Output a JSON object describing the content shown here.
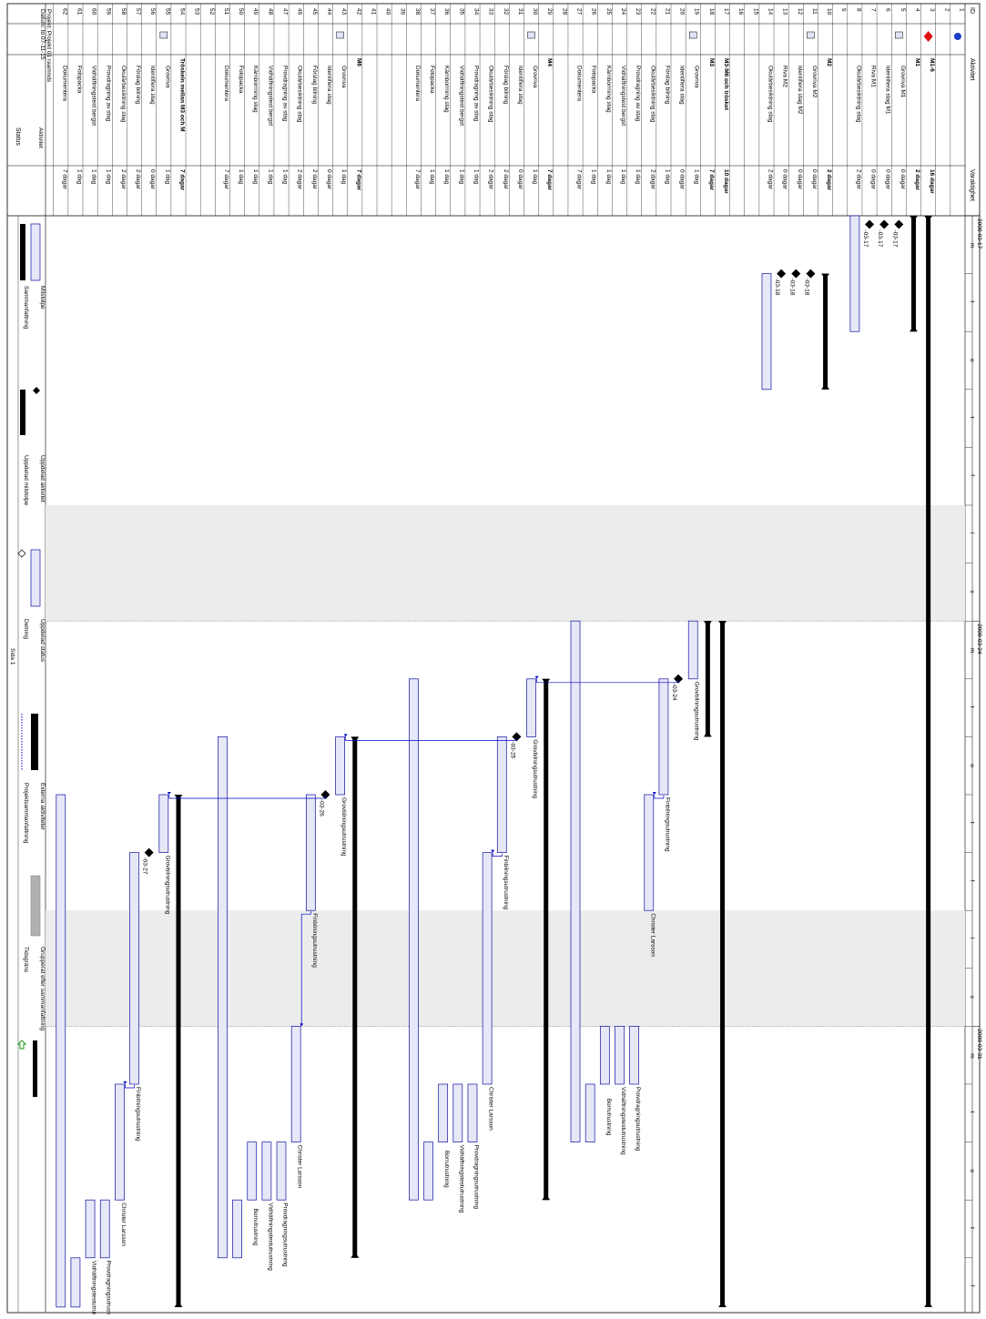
{
  "header": {
    "id_label": "ID",
    "task_label": "Aktivitet",
    "duration_label": "Varaktighet",
    "status_label": "Status",
    "project_info_line1": "Projekt: Projekt 01 raamnds",
    "project_info_line2": "Datum: to 07-11-15"
  },
  "timescale": {
    "weeks": [
      {
        "label": "2008-03-17",
        "days": [
          "m",
          "t",
          "o",
          "t",
          "f",
          "l",
          "s"
        ]
      },
      {
        "label": "2008-03-24",
        "days": [
          "m",
          "t",
          "o",
          "t",
          "f",
          "l",
          "s"
        ]
      },
      {
        "label": "2008-03-31",
        "days": [
          "m",
          "t",
          "o",
          "t",
          "f"
        ]
      }
    ]
  },
  "rows": [
    {
      "id": "1",
      "name": "",
      "dur": ""
    },
    {
      "id": "2",
      "name": "",
      "dur": ""
    },
    {
      "id": "3",
      "name": "M1-6",
      "dur": "16 dagar",
      "bold": true
    },
    {
      "id": "4",
      "name": "M1",
      "dur": "2 dagar",
      "bold": true
    },
    {
      "id": "5",
      "name": "Grovriva M1",
      "dur": "0 dagar"
    },
    {
      "id": "6",
      "name": "Identifiera stag M1",
      "dur": "0 dagar"
    },
    {
      "id": "7",
      "name": "Riva M1",
      "dur": "0 dagar"
    },
    {
      "id": "8",
      "name": "Okulärbesiktning stag",
      "dur": "2 dagar"
    },
    {
      "id": "9",
      "name": "",
      "dur": ""
    },
    {
      "id": "10",
      "name": "M2",
      "dur": "2 dagar",
      "bold": true
    },
    {
      "id": "11",
      "name": "Grovriva M2",
      "dur": "0 dagar"
    },
    {
      "id": "12",
      "name": "Identifiera stag M2",
      "dur": "0 dagar"
    },
    {
      "id": "13",
      "name": "Riva M2",
      "dur": "0 dagar"
    },
    {
      "id": "14",
      "name": "Okulärbesiktning stag",
      "dur": "2 dagar"
    },
    {
      "id": "15",
      "name": "",
      "dur": ""
    },
    {
      "id": "16",
      "name": "",
      "dur": ""
    },
    {
      "id": "17",
      "name": "M3-M6 och trösket",
      "dur": "10 dagar",
      "bold": true
    },
    {
      "id": "18",
      "name": "M3",
      "dur": "7 dagar",
      "bold": true
    },
    {
      "id": "19",
      "name": "Grovriva",
      "dur": "1 dag"
    },
    {
      "id": "20",
      "name": "Identifiera stag",
      "dur": "0 dagar"
    },
    {
      "id": "21",
      "name": "Förslag bilning",
      "dur": "1 dag"
    },
    {
      "id": "22",
      "name": "Okulärbesiktning stag",
      "dur": "2 dagar"
    },
    {
      "id": "23",
      "name": "Provdragning av stag",
      "dur": "1 dag"
    },
    {
      "id": "24",
      "name": "Vidhäftningstest bergst",
      "dur": "1 dag"
    },
    {
      "id": "25",
      "name": "Kärnborrning stag",
      "dur": "1 dag"
    },
    {
      "id": "26",
      "name": "Fotopacka",
      "dur": "1 dag"
    },
    {
      "id": "27",
      "name": "Dokumentera",
      "dur": "7 dagar"
    },
    {
      "id": "28",
      "name": "",
      "dur": ""
    },
    {
      "id": "29",
      "name": "M4",
      "dur": "7 dagar",
      "bold": true
    },
    {
      "id": "30",
      "name": "Grovriva",
      "dur": "1 dag"
    },
    {
      "id": "31",
      "name": "Identifiera stag",
      "dur": "0 dagar"
    },
    {
      "id": "32",
      "name": "Förslag bilning",
      "dur": "2 dagar"
    },
    {
      "id": "33",
      "name": "Okulärbesiktning stag",
      "dur": "2 dagar"
    },
    {
      "id": "34",
      "name": "Provdragning av stag",
      "dur": "1 dag"
    },
    {
      "id": "35",
      "name": "Vidhäftningstest bergst",
      "dur": "1 dag"
    },
    {
      "id": "36",
      "name": "Kärnborrning stag",
      "dur": "1 dag"
    },
    {
      "id": "37",
      "name": "Fotopacka",
      "dur": "1 dag"
    },
    {
      "id": "38",
      "name": "Dokumentera",
      "dur": "7 dagar"
    },
    {
      "id": "39",
      "name": "",
      "dur": ""
    },
    {
      "id": "40",
      "name": "",
      "dur": ""
    },
    {
      "id": "41",
      "name": "",
      "dur": ""
    },
    {
      "id": "42",
      "name": "M6",
      "dur": "7 dagar",
      "bold": true
    },
    {
      "id": "43",
      "name": "Grovriva",
      "dur": "1 dag"
    },
    {
      "id": "44",
      "name": "Identifiera stag",
      "dur": "0 dagar"
    },
    {
      "id": "45",
      "name": "Förslag bilning",
      "dur": "2 dagar"
    },
    {
      "id": "46",
      "name": "Okulärbesiktning stag",
      "dur": "2 dagar"
    },
    {
      "id": "47",
      "name": "Provdragning av stag",
      "dur": "1 dag"
    },
    {
      "id": "48",
      "name": "Vidhäftningstest bergst",
      "dur": "1 dag"
    },
    {
      "id": "49",
      "name": "Kärnborrning stag",
      "dur": "1 dag"
    },
    {
      "id": "50",
      "name": "Fotopacka",
      "dur": "1 dag"
    },
    {
      "id": "51",
      "name": "Dokumentera",
      "dur": "7 dagar"
    },
    {
      "id": "52",
      "name": "",
      "dur": ""
    },
    {
      "id": "53",
      "name": "",
      "dur": ""
    },
    {
      "id": "54",
      "name": "Tröskeln mellan M3 och M",
      "dur": "7 dagar",
      "bold": true
    },
    {
      "id": "55",
      "name": "Grovriva",
      "dur": "1 dag"
    },
    {
      "id": "56",
      "name": "Identifiera stag",
      "dur": "0 dagar"
    },
    {
      "id": "57",
      "name": "Förslag bilning",
      "dur": "2 dagar"
    },
    {
      "id": "58",
      "name": "Okulärbesiktning stag",
      "dur": "2 dagar"
    },
    {
      "id": "59",
      "name": "Provdragning av stag",
      "dur": "1 dag"
    },
    {
      "id": "60",
      "name": "Vidhäftningstest bergst",
      "dur": "1 dag"
    },
    {
      "id": "61",
      "name": "Fotopacka",
      "dur": "1 dag"
    },
    {
      "id": "62",
      "name": "Dokumentera",
      "dur": "7 dagar"
    }
  ],
  "bar_labels": {
    "milestone_03_17": "-03-17",
    "milestone_03_18": "-03-18",
    "milestone_03_24": "-03-24",
    "milestone_03_25": "-03-25",
    "milestone_03_26": "-03-26",
    "milestone_03_27": "-03-27",
    "grovbilning": "Grovbilningsutrustning",
    "finbilning": "Finbilningsutrustning",
    "christer": "Christer Larsson",
    "provdragning": "Provdragningsutrustning",
    "vidhaftning": "Vidhäftningstestutrustning",
    "borr": "Borrutrustning"
  },
  "legend": {
    "items": [
      {
        "label": "Aktivitet"
      },
      {
        "label": "Delning"
      },
      {
        "label": "Status"
      },
      {
        "label": "Milstolpe"
      },
      {
        "label": "Sammanfattning"
      },
      {
        "label": "Projektsammanfattning"
      },
      {
        "label": "Externa aktiviteter"
      },
      {
        "label": "Uppdelad aktivitet"
      },
      {
        "label": "Uppdelad milstolpe"
      },
      {
        "label": "Uppdelad status"
      },
      {
        "label": "Grupperat efter sammanfattning"
      },
      {
        "label": "Tidsgräns"
      }
    ],
    "page_label": "Sida 1"
  },
  "colors": {
    "bar_fill": "#e6e8f8",
    "bar_stroke": "#1010a0",
    "summary": "#000000",
    "weekend": "#ececec",
    "link": "#0000c8"
  }
}
